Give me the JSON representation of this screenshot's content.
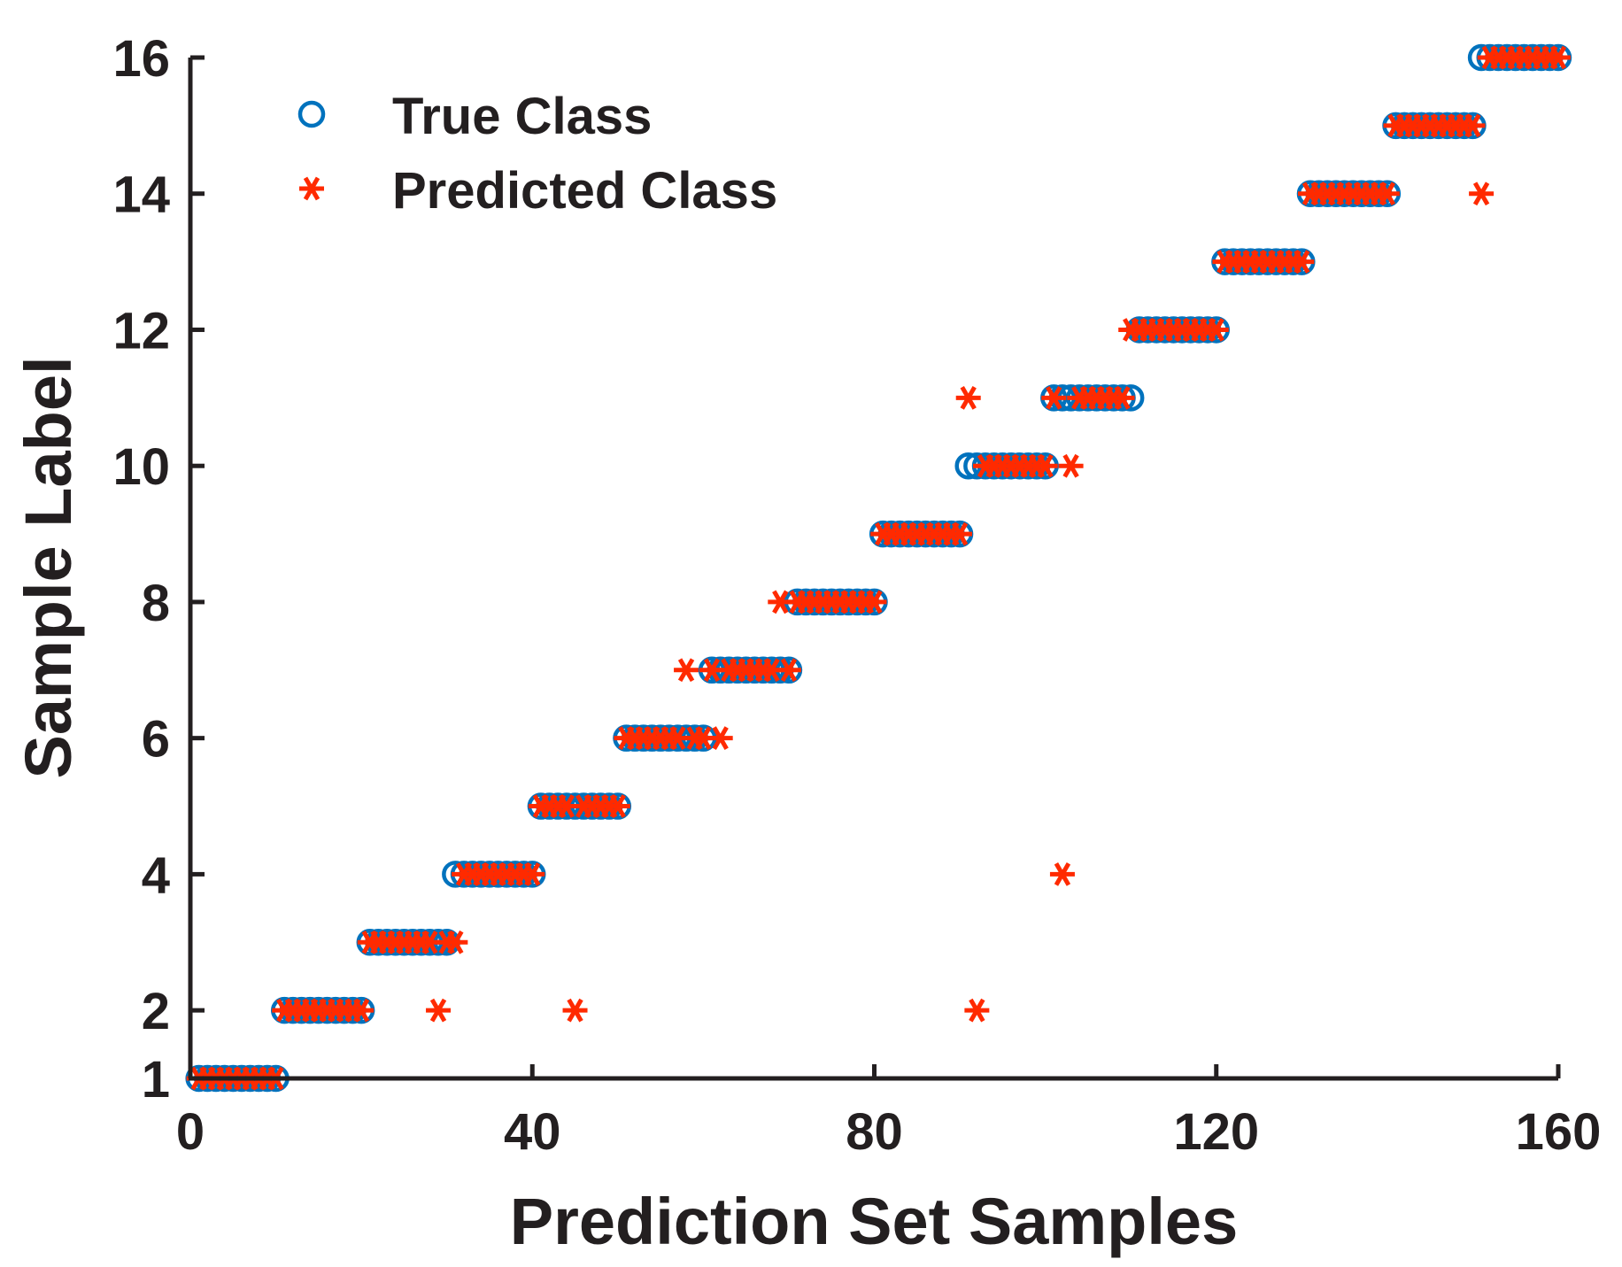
{
  "colors": {
    "true_class": "#0072bd",
    "predicted_class": "#ff2a00",
    "axis": "#231f20"
  },
  "chart_data": {
    "type": "scatter",
    "title": "",
    "xlabel": "Prediction Set Samples",
    "ylabel": "Sample Label",
    "xlim": [
      0,
      160
    ],
    "ylim": [
      1,
      16
    ],
    "xticks": [
      0,
      40,
      80,
      120,
      160
    ],
    "yticks": [
      1,
      2,
      4,
      6,
      8,
      10,
      12,
      14,
      16
    ],
    "grid": false,
    "legend_position": "top-left",
    "series": [
      {
        "name": "True Class",
        "marker": "circle-open",
        "x": [
          1,
          2,
          3,
          4,
          5,
          6,
          7,
          8,
          9,
          10,
          11,
          12,
          13,
          14,
          15,
          16,
          17,
          18,
          19,
          20,
          21,
          22,
          23,
          24,
          25,
          26,
          27,
          28,
          29,
          30,
          31,
          32,
          33,
          34,
          35,
          36,
          37,
          38,
          39,
          40,
          41,
          42,
          43,
          44,
          45,
          46,
          47,
          48,
          49,
          50,
          51,
          52,
          53,
          54,
          55,
          56,
          57,
          58,
          59,
          60,
          61,
          62,
          63,
          64,
          65,
          66,
          67,
          68,
          69,
          70,
          71,
          72,
          73,
          74,
          75,
          76,
          77,
          78,
          79,
          80,
          81,
          82,
          83,
          84,
          85,
          86,
          87,
          88,
          89,
          90,
          91,
          92,
          93,
          94,
          95,
          96,
          97,
          98,
          99,
          100,
          101,
          102,
          103,
          104,
          105,
          106,
          107,
          108,
          109,
          110,
          111,
          112,
          113,
          114,
          115,
          116,
          117,
          118,
          119,
          120,
          121,
          122,
          123,
          124,
          125,
          126,
          127,
          128,
          129,
          130,
          131,
          132,
          133,
          134,
          135,
          136,
          137,
          138,
          139,
          140,
          141,
          142,
          143,
          144,
          145,
          146,
          147,
          148,
          149,
          150,
          151,
          152,
          153,
          154,
          155,
          156,
          157,
          158,
          159,
          160
        ],
        "y": [
          1,
          1,
          1,
          1,
          1,
          1,
          1,
          1,
          1,
          1,
          2,
          2,
          2,
          2,
          2,
          2,
          2,
          2,
          2,
          2,
          3,
          3,
          3,
          3,
          3,
          3,
          3,
          3,
          3,
          3,
          4,
          4,
          4,
          4,
          4,
          4,
          4,
          4,
          4,
          4,
          5,
          5,
          5,
          5,
          5,
          5,
          5,
          5,
          5,
          5,
          6,
          6,
          6,
          6,
          6,
          6,
          6,
          6,
          6,
          6,
          7,
          7,
          7,
          7,
          7,
          7,
          7,
          7,
          7,
          7,
          8,
          8,
          8,
          8,
          8,
          8,
          8,
          8,
          8,
          8,
          9,
          9,
          9,
          9,
          9,
          9,
          9,
          9,
          9,
          9,
          10,
          10,
          10,
          10,
          10,
          10,
          10,
          10,
          10,
          10,
          11,
          11,
          11,
          11,
          11,
          11,
          11,
          11,
          11,
          11,
          12,
          12,
          12,
          12,
          12,
          12,
          12,
          12,
          12,
          12,
          13,
          13,
          13,
          13,
          13,
          13,
          13,
          13,
          13,
          13,
          14,
          14,
          14,
          14,
          14,
          14,
          14,
          14,
          14,
          14,
          15,
          15,
          15,
          15,
          15,
          15,
          15,
          15,
          15,
          15,
          16,
          16,
          16,
          16,
          16,
          16,
          16,
          16,
          16,
          16
        ]
      },
      {
        "name": "Predicted Class",
        "marker": "asterisk",
        "x": [
          1,
          2,
          3,
          4,
          5,
          6,
          7,
          8,
          9,
          10,
          11,
          12,
          13,
          14,
          15,
          16,
          17,
          18,
          19,
          20,
          21,
          22,
          23,
          24,
          25,
          26,
          27,
          28,
          29,
          30,
          31,
          32,
          33,
          34,
          35,
          36,
          37,
          38,
          39,
          40,
          41,
          42,
          43,
          44,
          45,
          46,
          47,
          48,
          49,
          50,
          51,
          52,
          53,
          54,
          55,
          56,
          57,
          58,
          59,
          60,
          61,
          62,
          63,
          64,
          65,
          66,
          67,
          68,
          69,
          70,
          71,
          72,
          73,
          74,
          75,
          76,
          77,
          78,
          79,
          80,
          81,
          82,
          83,
          84,
          85,
          86,
          87,
          88,
          89,
          90,
          91,
          92,
          93,
          94,
          95,
          96,
          97,
          98,
          99,
          100,
          101,
          102,
          103,
          104,
          105,
          106,
          107,
          108,
          109,
          110,
          111,
          112,
          113,
          114,
          115,
          116,
          117,
          118,
          119,
          120,
          121,
          122,
          123,
          124,
          125,
          126,
          127,
          128,
          129,
          130,
          131,
          132,
          133,
          134,
          135,
          136,
          137,
          138,
          139,
          140,
          141,
          142,
          143,
          144,
          145,
          146,
          147,
          148,
          149,
          150,
          151,
          152,
          153,
          154,
          155,
          156,
          157,
          158,
          159,
          160
        ],
        "y": [
          1,
          1,
          1,
          1,
          1,
          1,
          1,
          1,
          1,
          1,
          2,
          2,
          2,
          2,
          2,
          2,
          2,
          2,
          2,
          2,
          3,
          3,
          3,
          3,
          3,
          3,
          3,
          3,
          2,
          3,
          3,
          4,
          4,
          4,
          4,
          4,
          4,
          4,
          4,
          4,
          5,
          5,
          5,
          5,
          2,
          5,
          5,
          5,
          5,
          5,
          6,
          6,
          6,
          6,
          6,
          6,
          6,
          7,
          6,
          6,
          7,
          6,
          7,
          7,
          7,
          7,
          7,
          7,
          8,
          7,
          8,
          8,
          8,
          8,
          8,
          8,
          8,
          8,
          8,
          8,
          9,
          9,
          9,
          9,
          9,
          9,
          9,
          9,
          9,
          9,
          11,
          2,
          10,
          10,
          10,
          10,
          10,
          10,
          10,
          10,
          11,
          4,
          10,
          11,
          11,
          11,
          11,
          11,
          11,
          12,
          12,
          12,
          12,
          12,
          12,
          12,
          12,
          12,
          12,
          12,
          13,
          13,
          13,
          13,
          13,
          13,
          13,
          13,
          13,
          13,
          14,
          14,
          14,
          14,
          14,
          14,
          14,
          14,
          14,
          14,
          15,
          15,
          15,
          15,
          15,
          15,
          15,
          15,
          15,
          15,
          14,
          16,
          16,
          16,
          16,
          16,
          16,
          16,
          16,
          16
        ]
      }
    ]
  }
}
